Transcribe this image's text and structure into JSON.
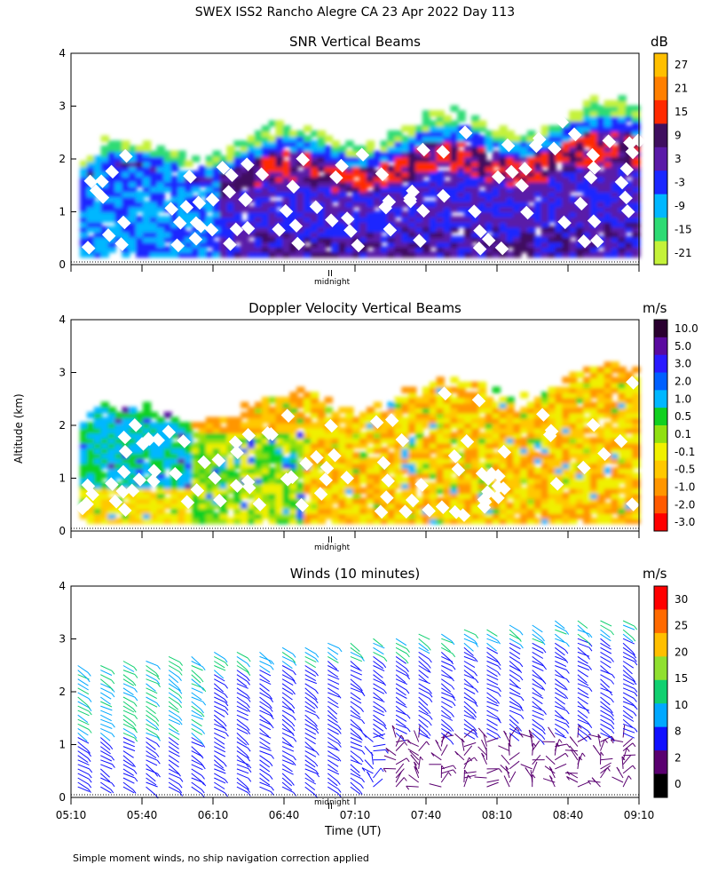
{
  "figure": {
    "title": "SWEX ISS2 Rancho Alegre CA  23 Apr 2022 Day 113",
    "ylabel": "Altitude (km)",
    "xlabel": "Time (UT)",
    "midnight_label": "midnight",
    "footnote": "Simple moment winds, no ship navigation correction applied"
  },
  "chart_data": [
    {
      "type": "heatmap",
      "title": "SNR Vertical Beams",
      "colorbar_unit": "dB",
      "colorbar_labels": [
        "27",
        "21",
        "15",
        "9",
        "3",
        "-3",
        "-9",
        "-15",
        "-21"
      ],
      "colorbar_colors": [
        "#ffbf00",
        "#ff7f00",
        "#ff2a00",
        "#3f0f5f",
        "#5a1aa8",
        "#1a28ff",
        "#00b7ff",
        "#2edb74",
        "#c4f23a"
      ],
      "ylim": [
        0,
        4
      ],
      "yticks": [
        "0",
        "1",
        "2",
        "3",
        "4"
      ],
      "x_range_ut": [
        "05:10",
        "09:10"
      ],
      "midnight_marker": "II"
    },
    {
      "type": "heatmap",
      "title": "Doppler Velocity Vertical Beams",
      "colorbar_unit": "m/s",
      "colorbar_labels": [
        "10.0",
        "5.0",
        "3.0",
        "2.0",
        "1.0",
        "0.5",
        "0.1",
        "-0.1",
        "-0.5",
        "-1.0",
        "-2.0",
        "-3.0"
      ],
      "colorbar_colors": [
        "#2a0030",
        "#5a0aa0",
        "#2a1aff",
        "#0060ff",
        "#00b7ff",
        "#10d020",
        "#90e010",
        "#f0f000",
        "#ffc800",
        "#ff9600",
        "#ff5a00",
        "#ff0000"
      ],
      "ylim": [
        0,
        4
      ],
      "yticks": [
        "0",
        "1",
        "2",
        "3",
        "4"
      ],
      "x_range_ut": [
        "05:10",
        "09:10"
      ],
      "midnight_marker": "II"
    },
    {
      "type": "scatter",
      "title": "Winds (10 minutes)",
      "colorbar_unit": "m/s",
      "colorbar_labels": [
        "30",
        "25",
        "20",
        "15",
        "10",
        "8",
        "2",
        "0"
      ],
      "colorbar_colors": [
        "#ff0000",
        "#ff6a00",
        "#ffbf00",
        "#90e030",
        "#10d070",
        "#00a8ff",
        "#1010ff",
        "#5a0070",
        "#000000"
      ],
      "ylim": [
        0,
        4
      ],
      "yticks": [
        "0",
        "1",
        "2",
        "3",
        "4"
      ],
      "xticks": [
        "05:10",
        "05:40",
        "06:10",
        "06:40",
        "07:10",
        "07:40",
        "08:10",
        "08:40",
        "09:10"
      ],
      "midnight_marker": "II"
    }
  ]
}
